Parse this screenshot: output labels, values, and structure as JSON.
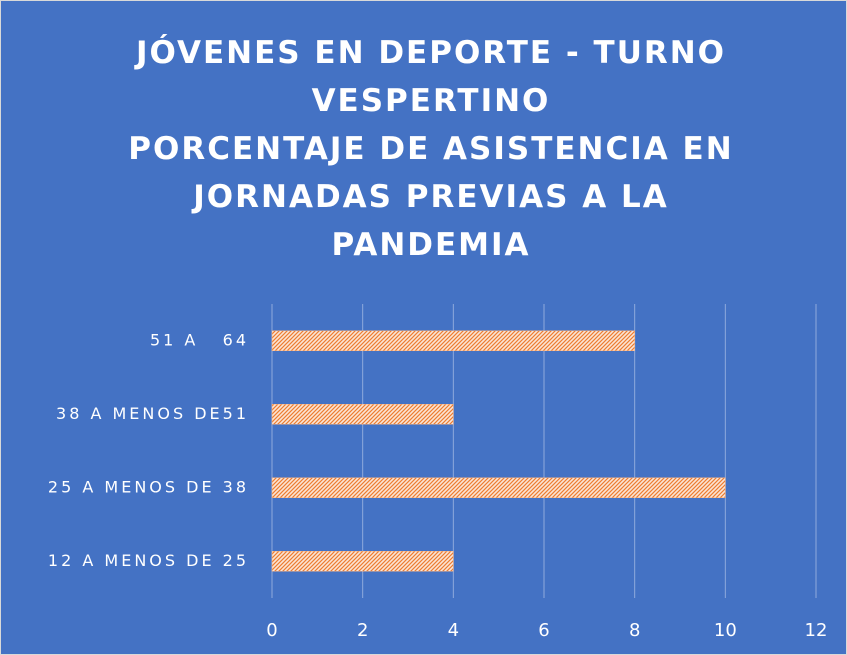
{
  "chart_data": {
    "type": "barh",
    "title": [
      "JÓVENES EN DEPORTE - TURNO VESPERTINO",
      "PORCENTAJE DE ASISTENCIA EN JORNADAS PREVIAS A LA PANDEMIA"
    ],
    "categories": [
      "51 A   64",
      "38 A MENOS DE51",
      "25 A MENOS DE 38",
      "12 A MENOS DE 25"
    ],
    "values": [
      8,
      4,
      10,
      4
    ],
    "color": "#ed7d31",
    "xlim": [
      0,
      12
    ],
    "xticks": [
      0,
      2,
      4,
      6,
      8,
      10,
      12
    ],
    "grid": true
  }
}
